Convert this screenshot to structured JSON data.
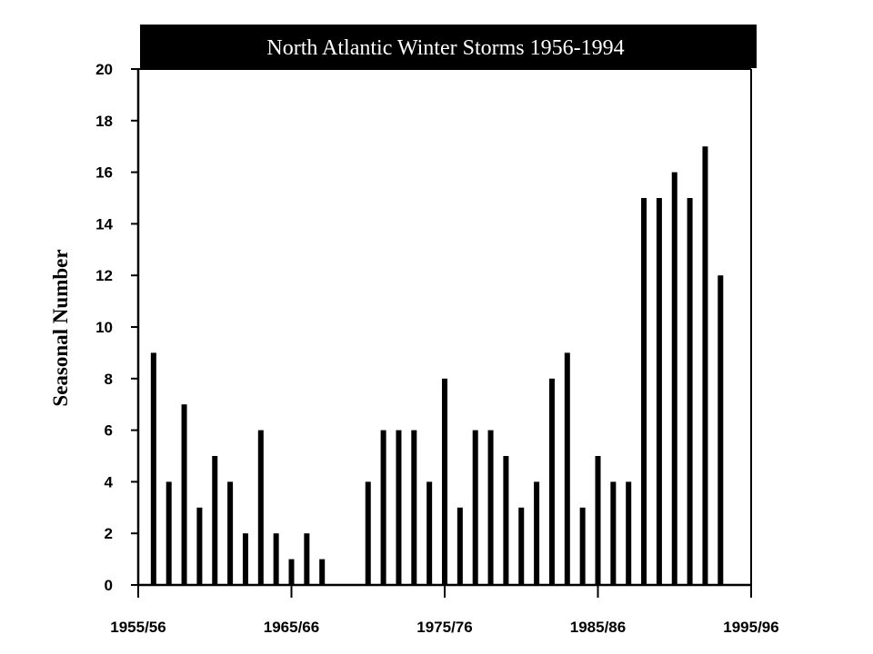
{
  "chart_data": {
    "type": "bar",
    "title": "North Atlantic Winter Storms 1956-1994",
    "ylabel": "Seasonal Number",
    "xlabel": "",
    "ylim": [
      0,
      20
    ],
    "yticks": [
      0,
      2,
      4,
      6,
      8,
      10,
      12,
      14,
      16,
      18,
      20
    ],
    "xlim": [
      1955,
      1995
    ],
    "xticks": [
      {
        "x": 1955,
        "label": "1955/56"
      },
      {
        "x": 1965,
        "label": "1965/66"
      },
      {
        "x": 1975,
        "label": "1975/76"
      },
      {
        "x": 1985,
        "label": "1985/86"
      },
      {
        "x": 1995,
        "label": "1995/96"
      }
    ],
    "grid": false,
    "bar_color": "#000000",
    "title_bg": "#000000",
    "x": [
      1956,
      1957,
      1958,
      1959,
      1960,
      1961,
      1962,
      1963,
      1964,
      1965,
      1966,
      1967,
      1968,
      1969,
      1970,
      1971,
      1972,
      1973,
      1974,
      1975,
      1976,
      1977,
      1978,
      1979,
      1980,
      1981,
      1982,
      1983,
      1984,
      1985,
      1986,
      1987,
      1988,
      1989,
      1990,
      1991,
      1992,
      1993,
      1994
    ],
    "values": [
      9,
      4,
      7,
      3,
      5,
      4,
      2,
      6,
      2,
      1,
      2,
      1,
      0,
      0,
      4,
      6,
      6,
      6,
      4,
      8,
      3,
      6,
      6,
      5,
      3,
      4,
      8,
      9,
      3,
      5,
      4,
      4,
      15,
      15,
      16,
      15,
      17,
      12,
      0
    ]
  }
}
